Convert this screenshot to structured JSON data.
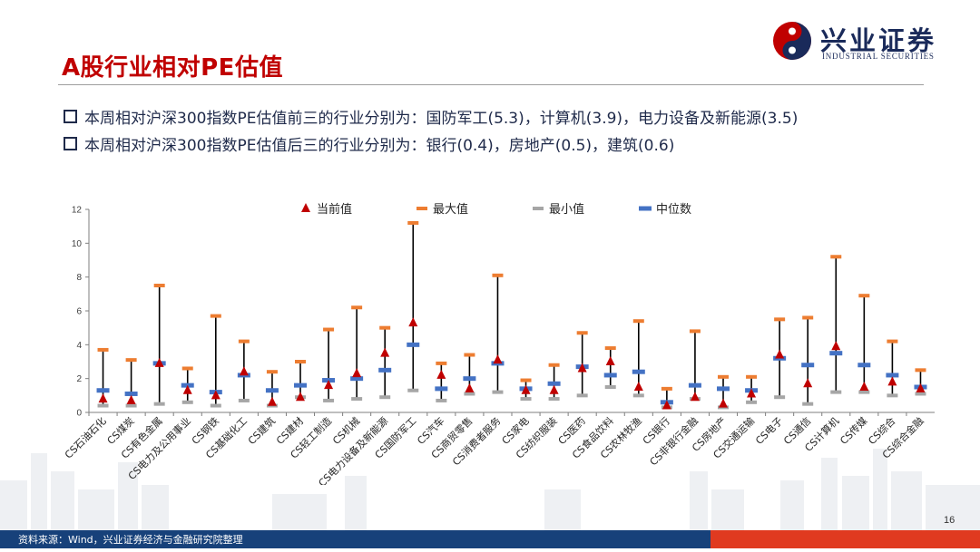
{
  "slide": {
    "title": "A股行业相对PE估值",
    "logo_cn": "兴业证券",
    "logo_en": "INDUSTRIAL SECURITIES",
    "bullets": [
      "本周相对沪深300指数PE估值前三的行业分别为：国防军工(5.3)，计算机(3.9)，电力设备及新能源(3.5)",
      "本周相对沪深300指数PE估值后三的行业分别为：银行(0.4)，房地产(0.5)，建筑(0.6)"
    ],
    "footer_source": "资料来源：Wind，兴业证券经济与金融研究院整理",
    "page_number": "16"
  },
  "colors": {
    "current": "#c00000",
    "max": "#ed7d31",
    "min": "#a6a6a6",
    "median": "#4472c4",
    "brand_red": "#c00000",
    "brand_blue": "#17417a"
  },
  "chart_data": {
    "type": "range",
    "title": "",
    "xlabel": "",
    "ylabel": "",
    "ylim": [
      0,
      12
    ],
    "yticks": [
      0,
      2,
      4,
      6,
      8,
      10,
      12
    ],
    "legend": [
      "当前值",
      "最大值",
      "最小值",
      "中位数"
    ],
    "legend_position": "top",
    "categories": [
      "CS石油石化",
      "CS煤炭",
      "CS有色金属",
      "CS电力及公用事业",
      "CS钢铁",
      "CS基础化工",
      "CS建筑",
      "CS建材",
      "CS轻工制造",
      "CS机械",
      "CS电力设备及新能源",
      "CS国防军工",
      "CS汽车",
      "CS商贸零售",
      "CS消费者服务",
      "CS家电",
      "CS纺织服装",
      "CS医药",
      "CS食品饮料",
      "CS农林牧渔",
      "CS银行",
      "CS非银行金融",
      "CS房地产",
      "CS交通运输",
      "CS电子",
      "CS通信",
      "CS计算机",
      "CS传媒",
      "CS综合",
      "CS综合金融"
    ],
    "series": [
      {
        "name": "当前值",
        "values": [
          0.8,
          0.7,
          2.9,
          1.3,
          1.0,
          2.4,
          0.6,
          0.9,
          1.6,
          2.3,
          3.5,
          5.3,
          2.2,
          1.4,
          3.1,
          1.3,
          1.3,
          2.6,
          3.0,
          1.5,
          0.4,
          0.9,
          0.5,
          1.1,
          3.4,
          1.7,
          3.9,
          1.5,
          1.8,
          1.4
        ]
      },
      {
        "name": "最大值",
        "values": [
          3.7,
          3.1,
          7.5,
          2.6,
          5.7,
          4.2,
          2.4,
          3.0,
          4.9,
          6.2,
          5.0,
          11.2,
          2.9,
          3.4,
          8.1,
          1.9,
          2.8,
          4.7,
          3.8,
          5.4,
          1.4,
          4.8,
          2.1,
          2.1,
          5.5,
          5.6,
          9.2,
          6.9,
          4.2,
          2.5
        ]
      },
      {
        "name": "最小值",
        "values": [
          0.4,
          0.4,
          0.5,
          0.6,
          0.4,
          0.7,
          0.4,
          0.9,
          0.7,
          0.8,
          0.9,
          1.3,
          0.7,
          1.1,
          1.2,
          0.8,
          0.8,
          1.0,
          1.5,
          1.0,
          0.3,
          0.8,
          0.3,
          0.6,
          0.9,
          0.5,
          1.2,
          1.2,
          1.0,
          1.1
        ]
      },
      {
        "name": "中位数",
        "values": [
          1.3,
          1.1,
          2.9,
          1.6,
          1.2,
          2.2,
          1.3,
          1.6,
          1.9,
          2.0,
          2.5,
          4.0,
          1.4,
          2.0,
          2.9,
          1.4,
          1.7,
          2.7,
          2.2,
          2.4,
          0.6,
          1.6,
          1.4,
          1.3,
          3.2,
          2.8,
          3.5,
          2.8,
          2.2,
          1.5
        ]
      }
    ]
  }
}
